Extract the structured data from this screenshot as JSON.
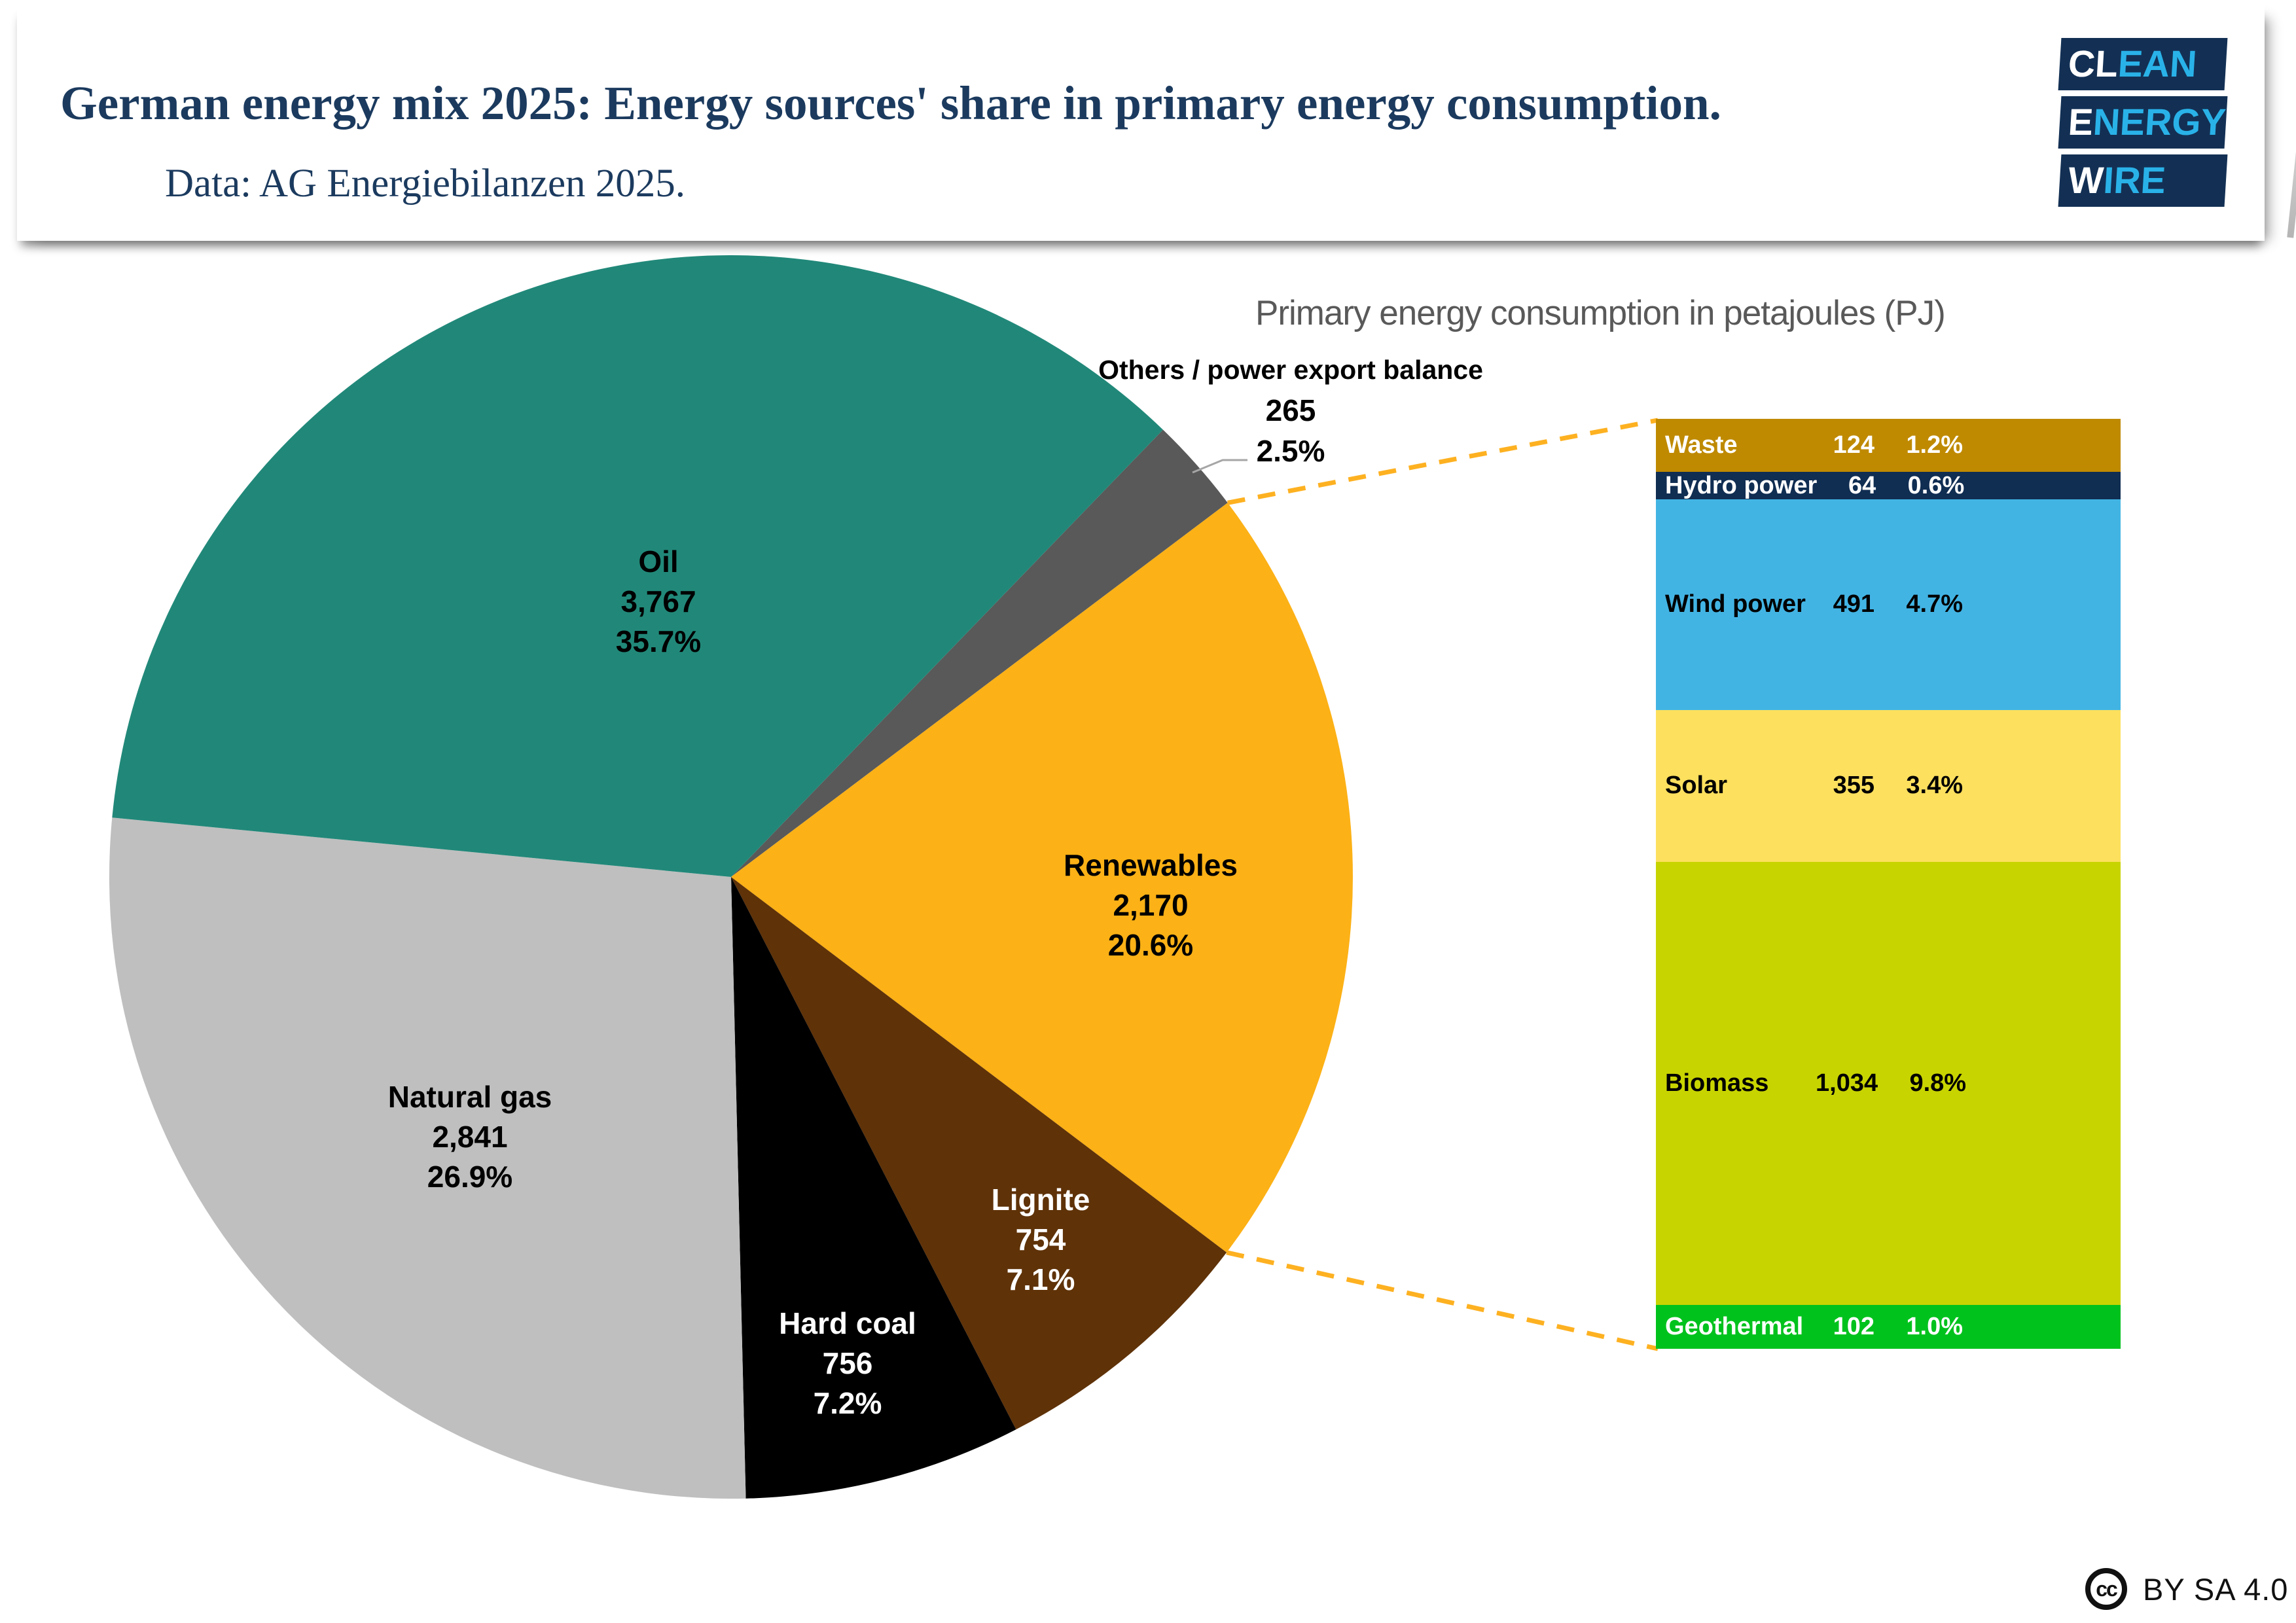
{
  "header": {
    "title": "German energy mix 2025: Energy sources' share in primary energy consumption.",
    "subtitle": "Data: AG Energiebilanzen 2025.",
    "logo": {
      "navy": "#133054",
      "accent": "#29B2E8",
      "rows": [
        {
          "white": "CL",
          "accent": "EAN"
        },
        {
          "white": "E",
          "accent": "NERGY"
        },
        {
          "white": "W",
          "accent": "IRE"
        }
      ]
    }
  },
  "chart_heading": "Primary energy consumption in petajoules (PJ)",
  "chart_data": {
    "type": "pie",
    "title": "German energy mix 2025: Energy sources' share in primary energy consumption",
    "unit": "petajoules (PJ)",
    "legend_position": "labels-on-slices",
    "connector_color": "#FDB121",
    "leader_line_color": "#A6A6A6",
    "pie": {
      "slices": [
        {
          "label": "Oil",
          "value": 3767,
          "value_str": "3,767",
          "pct": 35.7,
          "pct_str": "35.7%",
          "color": "#218879",
          "text_color": "#000000"
        },
        {
          "label": "Others / power export balance",
          "value": 265,
          "value_str": "265",
          "pct": 2.5,
          "pct_str": "2.5%",
          "color": "#595959",
          "text_color": "#000000"
        },
        {
          "label": "Renewables",
          "value": 2170,
          "value_str": "2,170",
          "pct": 20.6,
          "pct_str": "20.6%",
          "color": "#FCB116",
          "text_color": "#000000"
        },
        {
          "label": "Lignite",
          "value": 754,
          "value_str": "754",
          "pct": 7.1,
          "pct_str": "7.1%",
          "color": "#5F3208",
          "text_color": "#FFFFFF"
        },
        {
          "label": "Hard coal",
          "value": 756,
          "value_str": "756",
          "pct": 7.2,
          "pct_str": "7.2%",
          "color": "#000000",
          "text_color": "#FFFFFF"
        },
        {
          "label": "Natural gas",
          "value": 2841,
          "value_str": "2,841",
          "pct": 26.9,
          "pct_str": "26.9%",
          "color": "#BFBFBF",
          "text_color": "#000000"
        }
      ]
    },
    "renewables_breakdown": {
      "segments": [
        {
          "label": "Waste",
          "value": 124,
          "value_str": "124",
          "pct_str": "1.2%",
          "color": "#BF8A00",
          "text_color": "#FFFFFF"
        },
        {
          "label": "Hydro power",
          "value": 64,
          "value_str": "64",
          "pct_str": "0.6%",
          "color": "#102D52",
          "text_color": "#FFFFFF"
        },
        {
          "label": "Wind power",
          "value": 491,
          "value_str": "491",
          "pct_str": "4.7%",
          "color": "#42B4E4",
          "text_color": "#000000"
        },
        {
          "label": "Solar",
          "value": 355,
          "value_str": "355",
          "pct_str": "3.4%",
          "color": "#FDE05E",
          "text_color": "#000000"
        },
        {
          "label": "Biomass",
          "value": 1034,
          "value_str": "1,034",
          "pct_str": "9.8%",
          "color": "#C8D400",
          "text_color": "#000000"
        },
        {
          "label": "Geothermal",
          "value": 102,
          "value_str": "102",
          "pct_str": "1.0%",
          "color": "#00C21D",
          "text_color": "#FFFFFF"
        }
      ]
    }
  },
  "footer": {
    "license_icon_text": "cc",
    "license_label": "BY SA 4.0"
  }
}
